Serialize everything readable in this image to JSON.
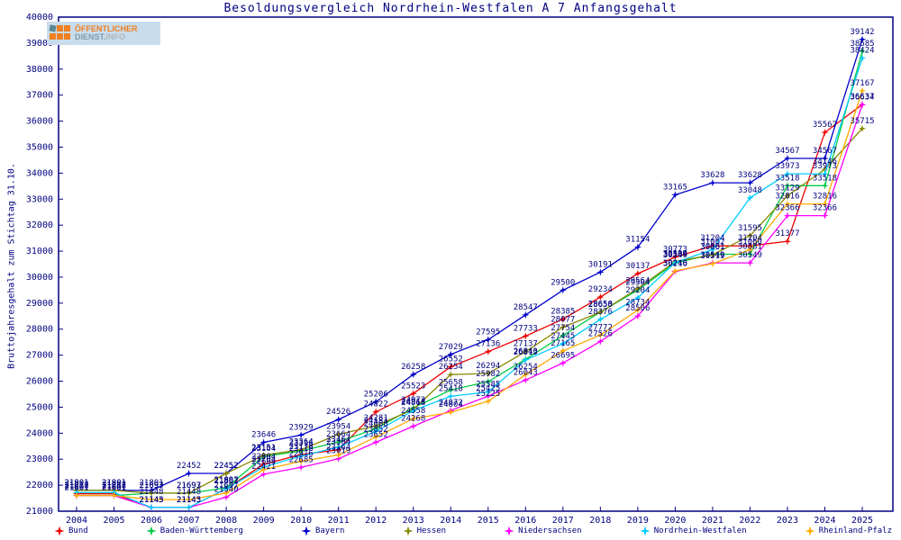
{
  "header": {
    "title": "Besoldungsvergleich Nordrhein-Westfalen A 7 Anfangsgehalt",
    "logo": {
      "line1": "ÖFFENTLICHER",
      "line2_part1": "DIENST.",
      "line2_part2": "INFO"
    }
  },
  "axes": {
    "y_label": "Bruttojahresgehalt zum Stichtag 31.10.",
    "y_min": 21000,
    "y_max": 40000,
    "y_step": 1000,
    "axis_color": "#000080"
  },
  "chart_data": {
    "type": "line",
    "title": "Besoldungsvergleich Nordrhein-Westfalen A 7 Anfangsgehalt",
    "xlabel": "",
    "ylabel": "Bruttojahresgehalt zum Stichtag 31.10.",
    "ylim": [
      21000,
      40000
    ],
    "grid": false,
    "legend_position": "bottom",
    "point_labels_shown": true,
    "label_color": "#000080",
    "categories": [
      2004,
      2005,
      2006,
      2007,
      2008,
      2009,
      2010,
      2011,
      2012,
      2013,
      2014,
      2015,
      2016,
      2017,
      2018,
      2019,
      2020,
      2021,
      2022,
      2023,
      2024,
      2025
    ],
    "series": [
      {
        "name": "Bund",
        "color": "#ee0000",
        "values": [
          21668,
          21668,
          21143,
          21143,
          21862,
          22804,
          23178,
          23364,
          24822,
          25523,
          26552,
          27136,
          27733,
          28385,
          29234,
          30137,
          30773,
          31204,
          31204,
          31377,
          35567,
          36637
        ]
      },
      {
        "name": "Baden-Württemberg",
        "color": "#00cc44",
        "values": [
          21601,
          21601,
          21693,
          21693,
          21897,
          23104,
          23316,
          23664,
          24181,
          24972,
          25658,
          25982,
          26843,
          27754,
          28658,
          29504,
          30549,
          30881,
          30881,
          33518,
          33518,
          38685
        ]
      },
      {
        "name": "Bayern",
        "color": "#0000cc",
        "values": [
          21801,
          21801,
          21801,
          22452,
          22452,
          23646,
          23929,
          24526,
          25206,
          26258,
          27029,
          27595,
          28547,
          29500,
          30191,
          31154,
          33165,
          33628,
          33628,
          34567,
          34567,
          39142
        ]
      },
      {
        "name": "Hessen",
        "color": "#888800",
        "values": [
          21801,
          21801,
          21697,
          21697,
          22452,
          23151,
          23364,
          23954,
          24281,
          24913,
          26254,
          26294,
          27137,
          28077,
          28650,
          29564,
          30599,
          30861,
          31595,
          33129,
          34146,
          35715
        ]
      },
      {
        "name": "Niedersachsen",
        "color": "#ff00ff",
        "values": [
          21601,
          21601,
          21143,
          21143,
          21540,
          22421,
          22685,
          23019,
          23652,
          24268,
          24872,
          25425,
          26043,
          26695,
          27526,
          28506,
          30216,
          30549,
          30549,
          32366,
          32366,
          36634
        ]
      },
      {
        "name": "Nordrhein-Westfalen",
        "color": "#00ccff",
        "values": [
          21717,
          21717,
          21145,
          21145,
          21862,
          22704,
          23118,
          23464,
          24068,
          24868,
          25418,
          25585,
          26819,
          27445,
          28376,
          29204,
          30564,
          31062,
          33048,
          33973,
          33973,
          38424
        ]
      },
      {
        "name": "Rheinland-Pfalz",
        "color": "#ffaa00",
        "values": [
          21601,
          21601,
          21448,
          21448,
          21697,
          22604,
          22916,
          23164,
          23852,
          24558,
          24804,
          25225,
          26254,
          27165,
          27772,
          28734,
          30240,
          30519,
          31060,
          32816,
          32816,
          37167
        ]
      }
    ]
  }
}
